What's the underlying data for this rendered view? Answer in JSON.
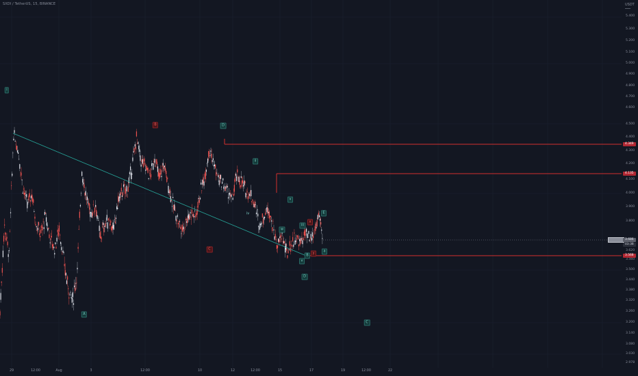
{
  "header": {
    "symbol_title": "SXDI / TetherUS, 15, BINANCE",
    "currency": "USDT"
  },
  "price_axis": {
    "ticks": [
      "5.400",
      "5.300",
      "5.200",
      "5.100",
      "5.000",
      "4.900",
      "4.800",
      "4.700",
      "4.600",
      "4.500",
      "4.400",
      "4.300",
      "4.200",
      "4.100",
      "4.000",
      "3.900",
      "3.800",
      "3.620",
      "3.560",
      "3.500",
      "3.440",
      "3.380",
      "3.320",
      "3.260",
      "3.200",
      "3.140",
      "3.080",
      "3.030",
      "2.978"
    ],
    "badges": [
      {
        "price": "4.349",
        "style": "red"
      },
      {
        "price": "4.135",
        "style": "red"
      },
      {
        "price": "3.686",
        "style": "dark"
      },
      {
        "price": "03:38",
        "style": "light"
      },
      {
        "price": "3.568",
        "style": "red"
      }
    ]
  },
  "time_axis": {
    "ticks": [
      "29",
      "12:00",
      "Aug",
      "3",
      "12:00",
      "10",
      "12",
      "12:00",
      "15",
      "17",
      "19",
      "12:00",
      "22"
    ]
  },
  "waves": {
    "labels": [
      "i",
      "B",
      "D",
      "ii",
      "A",
      "C",
      "iv",
      "v",
      "iii",
      "w",
      "x",
      "E",
      "v",
      "y",
      "a",
      "B",
      "D",
      "C",
      "E",
      "z"
    ]
  },
  "chart_data": {
    "type": "line",
    "title": "SXDI / TetherUS, 15, BINANCE",
    "xlabel": "",
    "ylabel": "",
    "x_ticks": [
      "29",
      "12:00",
      "Aug",
      "3",
      "12:00",
      "10",
      "12",
      "12:00",
      "15",
      "17",
      "19",
      "12:00",
      "22"
    ],
    "ylim": [
      2.978,
      5.45
    ],
    "series": [
      {
        "values": [
          3.26,
          3.78,
          3.58,
          4.42,
          4.3,
          4.05,
          3.92,
          4.0,
          3.78,
          3.72,
          3.84,
          3.7,
          3.62,
          3.76,
          3.54,
          3.4,
          3.32,
          3.5,
          4.15,
          3.96,
          3.86,
          3.92,
          3.7,
          3.78,
          3.82,
          3.74,
          3.95,
          4.02,
          4.02,
          4.18,
          4.4,
          4.22,
          4.18,
          4.12,
          4.25,
          4.1,
          4.2,
          4.06,
          3.92,
          3.82,
          3.74,
          3.82,
          3.86,
          3.84,
          4.0,
          4.12,
          4.32,
          4.2,
          4.1,
          4.06,
          4.02,
          3.95,
          4.12,
          4.08,
          4.02,
          4.0,
          3.92,
          3.78,
          3.84,
          3.9,
          3.76,
          3.64,
          3.72,
          3.58,
          3.66,
          3.7,
          3.66,
          3.72,
          3.68,
          3.72,
          3.84,
          3.68
        ]
      }
    ],
    "levels": [
      4.349,
      4.135,
      3.568
    ],
    "current_price": 3.686,
    "grid": true
  }
}
